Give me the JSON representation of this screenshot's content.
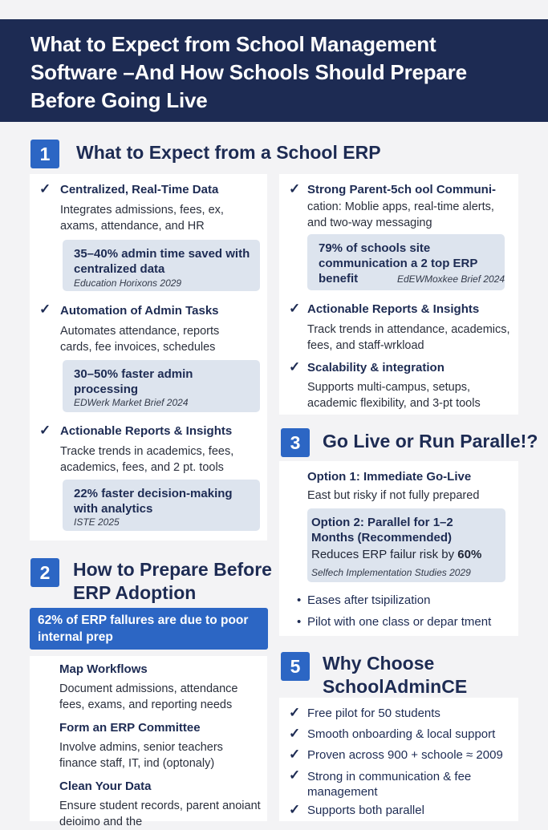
{
  "header": {
    "title": "What to Expect from School Management Software –And How Schools Should Prepare Before Going Live"
  },
  "section1": {
    "number": "1",
    "title": "What to Expect from a School ERP",
    "left": [
      {
        "title": "Centralized, Real-Time Data",
        "desc": "Integrates admissions, fees, ex, axams, attendance, and HR",
        "stat": "35–40% admin time saved with centralized data",
        "source": "Education Horixons 2029"
      },
      {
        "title": "Automation of Admin Tasks",
        "desc": "Automates attendance, reports cards, fee invoices, schedules",
        "stat": "30–50% faster admin processing",
        "source": "EDWerk Market Brief 2024"
      },
      {
        "title": "Actionable Reports & Insights",
        "desc": "Tracke trends in academics, fees, academics, fees, and 2 pt. tools",
        "stat": "22% faster decision-making with analytics",
        "source": "ISTE 2025"
      }
    ],
    "right": [
      {
        "title": "Strong Parent-5ch ool Communi-",
        "desc": "cation: Moblie apps, real-time alerts, and two-way messaging",
        "stat": "79% of schools site communication a 2 top ERP benefit",
        "source": "EdEWMoxkee Brief 2024"
      },
      {
        "title": "Actionable Reports & Insights",
        "desc": "Track trends in attendance, academics, fees, and staff-wrkload"
      },
      {
        "title": "Scalability & integration",
        "desc": "Supports multi-campus, setups, academic flexibility, and 3-pt tools"
      }
    ]
  },
  "section2": {
    "number": "2",
    "title": "How to Prepare Before ERP Adoption",
    "banner": "62% of ERP fallures are due to poor internal prep",
    "steps": [
      {
        "title": "Map Workflows",
        "desc": "Document admissions, attendance fees, exams, and reporting needs"
      },
      {
        "title": "Form an ERP Committee",
        "desc": "Involve admins, senior teachers finance staff, IT, ind (optonaly)"
      },
      {
        "title": "Clean Your Data",
        "desc": "Ensure student records, parent anoiant deioimo and the"
      }
    ]
  },
  "section3": {
    "number": "3",
    "title": "Go Live or Run Paralle!?",
    "option1_title": "Option 1: Immediate Go-Live",
    "option1_desc": "East but risky if not fully prepared",
    "option2_title": "Option 2: Parallel for 1–2 Months (Recommended)",
    "option2_desc_prefix": "Reduces ERP failur risk by",
    "option2_desc_value": "60%",
    "option2_source": "Selfech Implementation Studies 2029",
    "bullets": [
      "Eases after tsipilization",
      "Pilot with one class or depar tment"
    ]
  },
  "section5": {
    "number": "5",
    "title": "Why Choose SchoolAdminCE",
    "checks": [
      "Free pilot for 50 students",
      "Smooth onboarding & local support",
      "Proven across 900 + schoole ≈ 2009",
      "Strong in communication & fee management",
      "Supports both parallel"
    ]
  },
  "colors": {
    "navy": "#1d2b53",
    "accent": "#2c66c4",
    "stat_bg": "#dde4ee"
  }
}
